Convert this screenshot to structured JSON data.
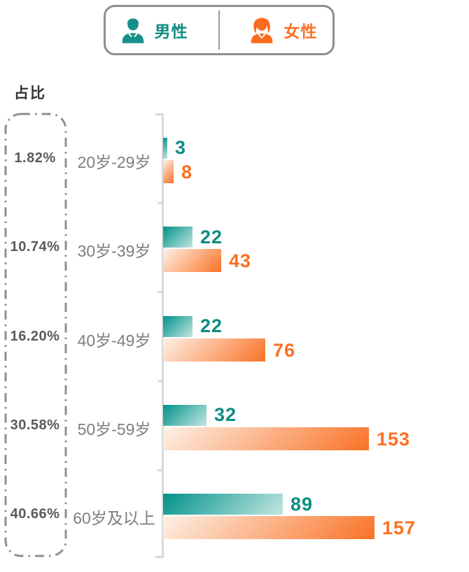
{
  "legend": {
    "male_icon": "male-person-icon",
    "female_icon": "female-person-icon"
  },
  "colors": {
    "male": "#00928a",
    "male_light": "#c3e6e1",
    "male_text": "#0e8c81",
    "female": "#fa7226",
    "female_light": "#fdf1e7",
    "female_text": "#fb7021",
    "axis": "#d9d9d9",
    "dash_border": "#8f8f8f"
  },
  "chart_data": {
    "type": "bar",
    "orientation": "horizontal",
    "title": "",
    "ratio_label": "占比",
    "categories": [
      "20岁-29岁",
      "30岁-39岁",
      "40岁-49岁",
      "50岁-59岁",
      "60岁及以上"
    ],
    "series": [
      {
        "name": "男性",
        "color": "#00928a",
        "values": [
          3,
          22,
          22,
          32,
          89
        ]
      },
      {
        "name": "女性",
        "color": "#fa7226",
        "values": [
          8,
          43,
          76,
          153,
          157
        ]
      }
    ],
    "percentages": [
      "1.82%",
      "10.74%",
      "16.20%",
      "30.58%",
      "40.66%"
    ],
    "xlim": [
      0,
      160
    ],
    "legend_position": "top",
    "grid": false
  }
}
